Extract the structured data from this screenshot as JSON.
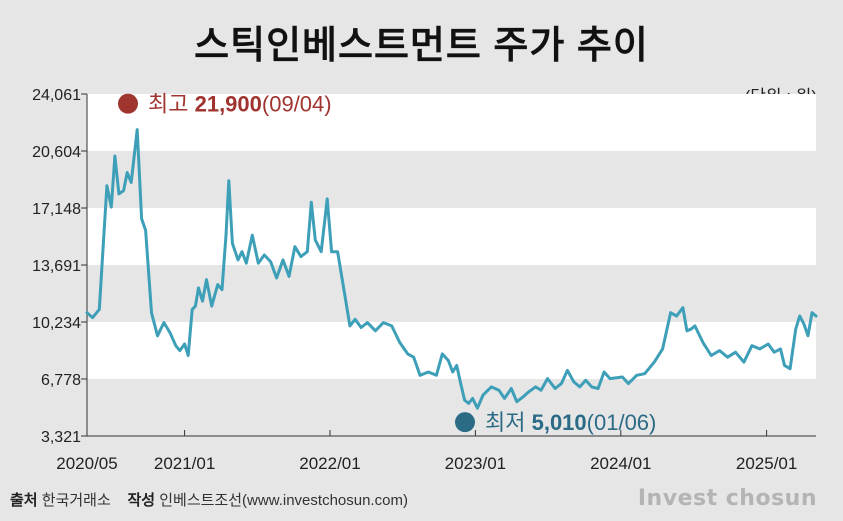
{
  "title": "스틱인베스트먼트 주가 추이",
  "unit_label": "(단위 : 원)",
  "source_label": "출처",
  "source_value": "한국거래소",
  "author_label": "작성",
  "author_value": "인베스트조선(www.investchosun.com)",
  "brand": "Invest chosun",
  "colors": {
    "line": "#3e9fb8",
    "high_dot": "#a0342f",
    "low_dot": "#2b6b86",
    "band": "#ffffff",
    "background": "#e6e6e6"
  },
  "chart_data": {
    "type": "line",
    "ylim": [
      3321,
      24061
    ],
    "y_ticks": [
      "3,321",
      "6,778",
      "10,234",
      "13,691",
      "17,148",
      "20,604",
      "24,061"
    ],
    "x_ticks": [
      {
        "date": "2020-05",
        "label": "2020/05"
      },
      {
        "date": "2021-01",
        "label": "2021/01"
      },
      {
        "date": "2022-01",
        "label": "2022/01"
      },
      {
        "date": "2023-01",
        "label": "2023/01"
      },
      {
        "date": "2024-01",
        "label": "2024/01"
      },
      {
        "date": "2025-01",
        "label": "2025/01"
      }
    ],
    "series": [
      {
        "values": [
          [
            "2020-05-01",
            10800
          ],
          [
            "2020-05-15",
            10500
          ],
          [
            "2020-06-01",
            11000
          ],
          [
            "2020-06-20",
            18500
          ],
          [
            "2020-07-01",
            17200
          ],
          [
            "2020-07-10",
            20300
          ],
          [
            "2020-07-20",
            18000
          ],
          [
            "2020-08-01",
            18200
          ],
          [
            "2020-08-10",
            19300
          ],
          [
            "2020-08-20",
            18700
          ],
          [
            "2020-09-04",
            21900
          ],
          [
            "2020-09-15",
            16500
          ],
          [
            "2020-09-25",
            15800
          ],
          [
            "2020-10-10",
            10800
          ],
          [
            "2020-10-25",
            9400
          ],
          [
            "2020-11-10",
            10200
          ],
          [
            "2020-11-25",
            9600
          ],
          [
            "2020-12-10",
            8800
          ],
          [
            "2020-12-20",
            8500
          ],
          [
            "2021-01-01",
            8900
          ],
          [
            "2021-01-10",
            8200
          ],
          [
            "2021-01-20",
            11000
          ],
          [
            "2021-01-28",
            11200
          ],
          [
            "2021-02-05",
            12300
          ],
          [
            "2021-02-15",
            11500
          ],
          [
            "2021-02-25",
            12800
          ],
          [
            "2021-03-10",
            11200
          ],
          [
            "2021-03-25",
            12500
          ],
          [
            "2021-04-05",
            12200
          ],
          [
            "2021-04-15",
            15500
          ],
          [
            "2021-04-22",
            18800
          ],
          [
            "2021-05-01",
            15000
          ],
          [
            "2021-05-15",
            14000
          ],
          [
            "2021-05-25",
            14500
          ],
          [
            "2021-06-05",
            13800
          ],
          [
            "2021-06-20",
            15500
          ],
          [
            "2021-07-05",
            13800
          ],
          [
            "2021-07-20",
            14300
          ],
          [
            "2021-08-05",
            13900
          ],
          [
            "2021-08-20",
            12900
          ],
          [
            "2021-09-05",
            14000
          ],
          [
            "2021-09-20",
            13000
          ],
          [
            "2021-10-05",
            14800
          ],
          [
            "2021-10-20",
            14200
          ],
          [
            "2021-11-05",
            14500
          ],
          [
            "2021-11-15",
            17500
          ],
          [
            "2021-11-25",
            15200
          ],
          [
            "2021-12-10",
            14500
          ],
          [
            "2021-12-25",
            17700
          ],
          [
            "2022-01-05",
            14500
          ],
          [
            "2022-01-20",
            14500
          ],
          [
            "2022-02-05",
            12200
          ],
          [
            "2022-02-20",
            10000
          ],
          [
            "2022-03-05",
            10400
          ],
          [
            "2022-03-20",
            9900
          ],
          [
            "2022-04-05",
            10200
          ],
          [
            "2022-04-25",
            9700
          ],
          [
            "2022-05-15",
            10200
          ],
          [
            "2022-06-05",
            10000
          ],
          [
            "2022-06-25",
            9000
          ],
          [
            "2022-07-15",
            8300
          ],
          [
            "2022-07-30",
            8100
          ],
          [
            "2022-08-15",
            7000
          ],
          [
            "2022-09-05",
            7200
          ],
          [
            "2022-09-25",
            7000
          ],
          [
            "2022-10-10",
            8300
          ],
          [
            "2022-10-25",
            7900
          ],
          [
            "2022-11-05",
            7200
          ],
          [
            "2022-11-15",
            7600
          ],
          [
            "2022-11-25",
            6500
          ],
          [
            "2022-12-05",
            5500
          ],
          [
            "2022-12-15",
            5300
          ],
          [
            "2022-12-25",
            5600
          ],
          [
            "2023-01-06",
            5010
          ],
          [
            "2023-01-20",
            5800
          ],
          [
            "2023-02-10",
            6300
          ],
          [
            "2023-03-01",
            6100
          ],
          [
            "2023-03-15",
            5600
          ],
          [
            "2023-04-01",
            6200
          ],
          [
            "2023-04-15",
            5400
          ],
          [
            "2023-05-01",
            5700
          ],
          [
            "2023-05-15",
            6000
          ],
          [
            "2023-06-01",
            6300
          ],
          [
            "2023-06-15",
            6100
          ],
          [
            "2023-07-01",
            6800
          ],
          [
            "2023-07-20",
            6200
          ],
          [
            "2023-08-05",
            6500
          ],
          [
            "2023-08-20",
            7300
          ],
          [
            "2023-09-05",
            6600
          ],
          [
            "2023-09-20",
            6300
          ],
          [
            "2023-10-05",
            6700
          ],
          [
            "2023-10-20",
            6300
          ],
          [
            "2023-11-05",
            6200
          ],
          [
            "2023-11-20",
            7200
          ],
          [
            "2023-12-05",
            6800
          ],
          [
            "2024-01-05",
            6900
          ],
          [
            "2024-01-20",
            6500
          ],
          [
            "2024-02-10",
            7000
          ],
          [
            "2024-03-01",
            7100
          ],
          [
            "2024-03-25",
            7800
          ],
          [
            "2024-04-15",
            8600
          ],
          [
            "2024-05-05",
            10800
          ],
          [
            "2024-05-20",
            10600
          ],
          [
            "2024-06-05",
            11100
          ],
          [
            "2024-06-15",
            9700
          ],
          [
            "2024-06-25",
            9800
          ],
          [
            "2024-07-05",
            10000
          ],
          [
            "2024-07-25",
            9000
          ],
          [
            "2024-08-15",
            8200
          ],
          [
            "2024-09-05",
            8500
          ],
          [
            "2024-09-25",
            8100
          ],
          [
            "2024-10-15",
            8400
          ],
          [
            "2024-11-05",
            7800
          ],
          [
            "2024-11-25",
            8800
          ],
          [
            "2024-12-15",
            8600
          ],
          [
            "2025-01-05",
            8900
          ],
          [
            "2025-01-20",
            8400
          ],
          [
            "2025-02-05",
            8600
          ],
          [
            "2025-02-15",
            7600
          ],
          [
            "2025-03-01",
            7400
          ],
          [
            "2025-03-15",
            9800
          ],
          [
            "2025-03-25",
            10600
          ],
          [
            "2025-04-05",
            10100
          ],
          [
            "2025-04-15",
            9400
          ],
          [
            "2025-04-25",
            10800
          ],
          [
            "2025-05-05",
            10600
          ]
        ]
      }
    ],
    "annotations": [
      {
        "kind": "high",
        "date": "2020-09-04",
        "value": 21900,
        "prefix": "최고",
        "value_text": "21,900",
        "date_text": "(09/04)"
      },
      {
        "kind": "low",
        "date": "2023-01-06",
        "value": 5010,
        "prefix": "최저",
        "value_text": "5,010",
        "date_text": "(01/06)"
      }
    ],
    "grid": false
  }
}
